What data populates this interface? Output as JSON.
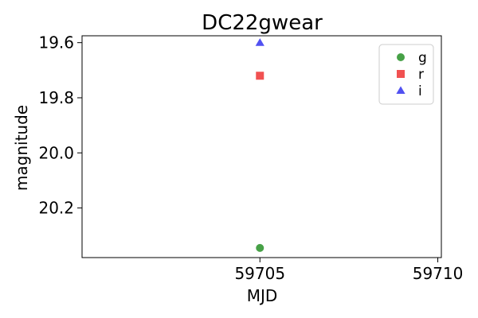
{
  "chart_data": {
    "type": "scatter",
    "title": "DC22gwear",
    "xlabel": "MJD",
    "ylabel": "magnitude",
    "xlim": [
      59700.0,
      59710.1
    ],
    "ylim": [
      20.38,
      19.575
    ],
    "y_inverted": true,
    "xticks": [
      59705,
      59710
    ],
    "xtick_labels": [
      "59705",
      "59710"
    ],
    "yticks": [
      19.6,
      19.8,
      20.0,
      20.2
    ],
    "ytick_labels": [
      "19.6",
      "19.8",
      "20.0",
      "20.2"
    ],
    "grid": false,
    "legend_position": "top-right",
    "series": [
      {
        "name": "g",
        "marker": "circle",
        "color": "#3d9c3d",
        "points": [
          {
            "x": 59705.0,
            "y": 20.345
          }
        ]
      },
      {
        "name": "r",
        "marker": "square",
        "color": "#f04848",
        "points": [
          {
            "x": 59705.0,
            "y": 19.72
          }
        ]
      },
      {
        "name": "i",
        "marker": "triangle",
        "color": "#4848f0",
        "points": [
          {
            "x": 59705.0,
            "y": 19.6
          }
        ]
      }
    ]
  }
}
